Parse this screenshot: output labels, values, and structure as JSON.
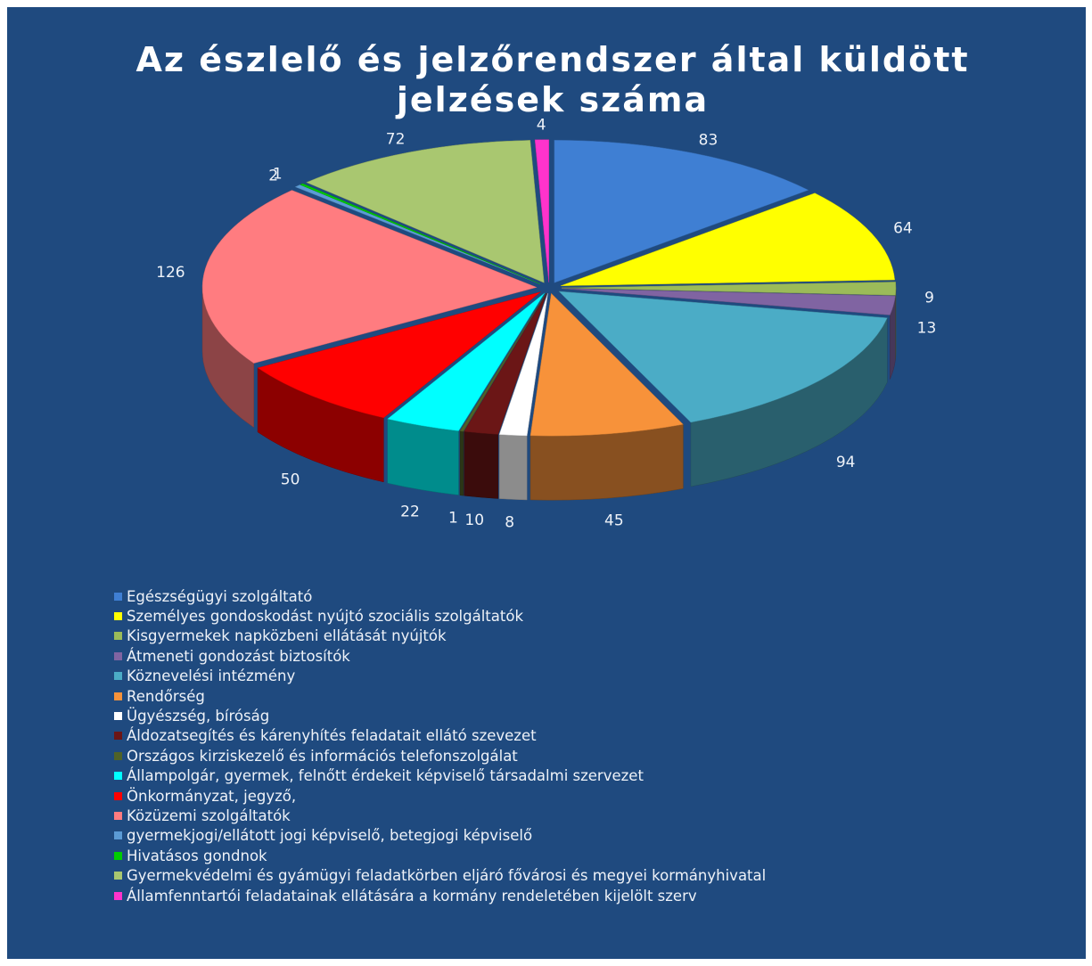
{
  "chart_data": {
    "type": "pie",
    "title": "Az észlelő és jelzőrendszer által küldött jelzések száma",
    "categories": [
      "Egészségügyi szolgáltató",
      "Személyes gondoskodást nyújtó szociális szolgáltatók",
      "Kisgyermekek napközbeni ellátását nyújtók",
      "Átmeneti gondozást biztosítók",
      "Köznevelési intézmény",
      "Rendőrség",
      "Ügyészség, bíróság",
      "Áldozatsegítés és kárenyhítés feladatait ellátó szevezet",
      "Országos kirziskezelő és információs telefonszolgálat",
      "Állampolgár, gyermek, felnőtt érdekeit képviselő társadalmi szervezet",
      "Önkormányzat, jegyző,",
      "Közüzemi szolgáltatók",
      "gyermekjogi/ellátott jogi képviselő, betegjogi képviselő",
      "Hivatásos gondnok",
      "Gyermekvédelmi és gyámügyi feladatkörben eljáró fővárosi és megyei kormányhivatal",
      "Államfenntartói feladatainak ellátására a kormány rendeletében kijelölt szerv"
    ],
    "values": [
      83,
      64,
      9,
      13,
      94,
      45,
      8,
      10,
      1,
      22,
      50,
      126,
      2,
      1,
      72,
      4
    ],
    "colors": [
      "#3f7fd3",
      "#ffff00",
      "#9bbb59",
      "#8064a2",
      "#4bacc6",
      "#f7923a",
      "#ffffff",
      "#6b1616",
      "#4f6228",
      "#00ffff",
      "#ff0000",
      "#ff7c80",
      "#5b9bd5",
      "#00cc00",
      "#a9c770",
      "#ff33cc"
    ],
    "legend": "bottom"
  }
}
